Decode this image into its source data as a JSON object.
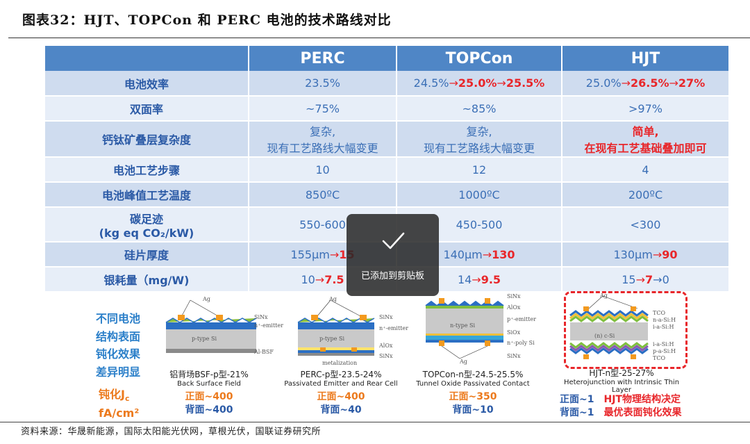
{
  "title": "图表32：HJT、TOPCon 和 PERC 电池的技术路线对比",
  "table": {
    "headers": [
      "",
      "PERC",
      "TOPCon",
      "HJT"
    ],
    "rows": [
      {
        "label": "电池效率",
        "perc": "23.5%",
        "topcon": {
          "base": "24.5%",
          "arrow1": "→",
          "v1": "25.0%",
          "arrow2": "→",
          "v2": "25.5%"
        },
        "hjt": {
          "base": "25.0%",
          "arrow1": "→",
          "v1": "26.5%",
          "arrow2": "→",
          "v2": "27%"
        }
      },
      {
        "label": "双面率",
        "perc": "~75%",
        "topcon": "~85%",
        "hjt": ">97%"
      },
      {
        "label": "钙钛矿叠层复杂度",
        "perc": {
          "l1": "复杂,",
          "l2": "现有工艺路线大幅变更"
        },
        "topcon": {
          "l1": "复杂,",
          "l2": "现有工艺路线大幅变更"
        },
        "hjt": {
          "l1": "简单,",
          "l2": "在现有工艺基础叠加即可"
        }
      },
      {
        "label": "电池工艺步骤",
        "perc": "10",
        "topcon": "12",
        "hjt": "4"
      },
      {
        "label": "电池峰值工艺温度",
        "perc": "850ºC",
        "topcon": "1000ºC",
        "hjt": "200ºC"
      },
      {
        "label": {
          "l1": "碳足迹",
          "l2": "(kg eq CO₂/kW)"
        },
        "perc": "550-600",
        "topcon": "450-500",
        "hjt": "<300"
      },
      {
        "label": "硅片厚度",
        "perc": {
          "base": "155μm",
          "arrow": "→",
          "v": "15"
        },
        "topcon": {
          "base": "140μm",
          "arrow": "→",
          "v": "130"
        },
        "hjt": {
          "base": "130μm",
          "arrow": "→",
          "v": "90"
        }
      },
      {
        "label": "银耗量（mg/W)",
        "perc": {
          "base": "10",
          "arrow": "→",
          "v": "7.5"
        },
        "topcon": {
          "base": "14",
          "arrow": "→",
          "v": "9.5"
        },
        "hjt": {
          "base": "15",
          "arrow1": "→",
          "v1": "7",
          "arrow2": "→",
          "v2": "0"
        }
      }
    ]
  },
  "side_labels": [
    "不同电池",
    "结构表面",
    "钝化效果",
    "差异明显"
  ],
  "jc_label": {
    "l1": "钝化J",
    "sub": "c",
    "l2": "fA/cm²"
  },
  "cells": [
    {
      "cap1": "铝背场BSF-p型-21%",
      "cap2": "Back Surface Field",
      "front": "正面~400",
      "back": "背面~400"
    },
    {
      "cap1": "PERC-p型-23.5-24%",
      "cap2": "Passivated Emitter and Rear Cell",
      "front": "正面~400",
      "back": "背面~40"
    },
    {
      "cap1": "TOPCon-n型-24.5-25.5%",
      "cap2": "Tunnel Oxide Passivated Contact",
      "front": "正面~350",
      "back": "背面~10"
    },
    {
      "cap1": "HJT-n型-25-27%",
      "cap2": "Heterojunction with Intrinsic Thin Layer",
      "front": "正面~1",
      "back": "背面~1",
      "note1": "HJT物理结构决定",
      "note2": "最优表面钝化效果"
    }
  ],
  "diagram_labels": {
    "bsf": [
      "Ag",
      "SiNx",
      "n⁺-emitter",
      "p-type Si",
      "Al-BSF"
    ],
    "perc": [
      "Ag",
      "SiNx",
      "n⁺-emitter",
      "p-type Si",
      "AlOx",
      "SiNx",
      "metalization"
    ],
    "topcon": [
      "SiNx",
      "AlOx",
      "p⁺-emitter",
      "n-type Si",
      "SiOx",
      "n⁺-poly Si",
      "SiNx",
      "Ag"
    ],
    "hjt": [
      "Ag",
      "TCO",
      "n-a-Si:H",
      "i-a-Si:H",
      "(n) c-Si",
      "i-a-Si:H",
      "p-a-Si:H",
      "TCO"
    ]
  },
  "footer": "资料来源：华晟新能源，国际太阳能光伏网，草根光伏，国联证券研究所",
  "toast": {
    "message": "已添加到剪贴板"
  },
  "colors": {
    "header_bg": "#4f86c6",
    "row_dark": "#cfdcef",
    "row_light": "#e7eef8",
    "accent_red": "#e8262a",
    "label_blue": "#2b5aa6",
    "orange": "#ec7a1d"
  }
}
